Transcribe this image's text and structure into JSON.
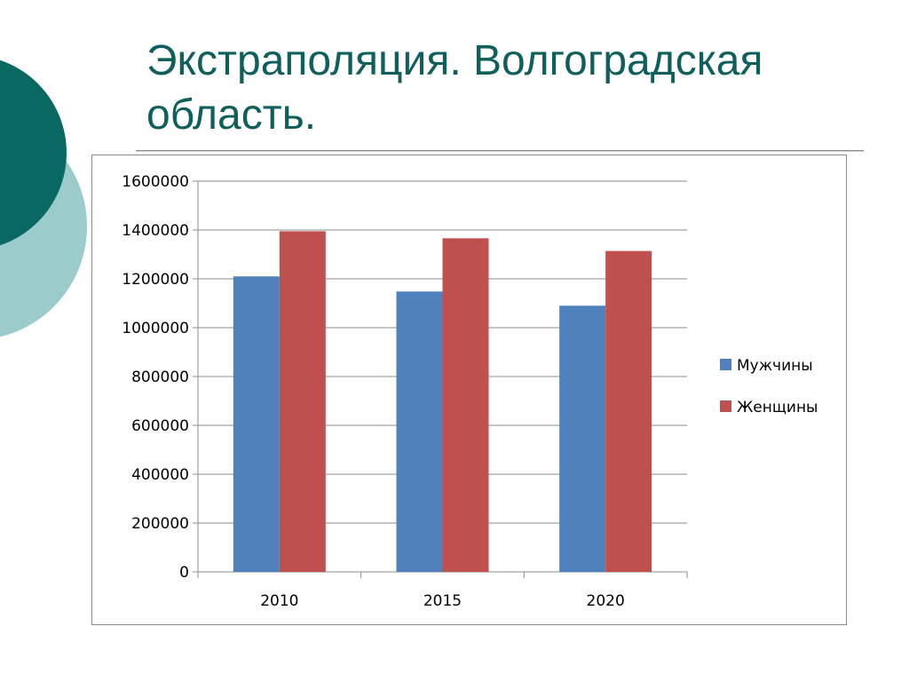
{
  "slide": {
    "title": "Экстраполяция. Волгоградская область."
  },
  "colors": {
    "title": "#0f5f5c",
    "deco_dark": "#0a6863",
    "deco_light": "#9ccbcc",
    "series_men": "#4f81bd",
    "series_women": "#c0504d",
    "grid": "#8c8c8c"
  },
  "chart_data": {
    "type": "bar",
    "title": "",
    "xlabel": "",
    "ylabel": "",
    "categories": [
      "2010",
      "2015",
      "2020"
    ],
    "series": [
      {
        "name": "Мужчины",
        "color": "#4f81bd",
        "values": [
          1210000,
          1148000,
          1090000
        ]
      },
      {
        "name": "Женщины",
        "color": "#c0504d",
        "values": [
          1395000,
          1366000,
          1314000
        ]
      }
    ],
    "ylim": [
      0,
      1600000
    ],
    "yticks": [
      "0",
      "200000",
      "400000",
      "600000",
      "800000",
      "1000000",
      "1200000",
      "1400000",
      "1600000"
    ],
    "grid": true,
    "legend_position": "right"
  }
}
